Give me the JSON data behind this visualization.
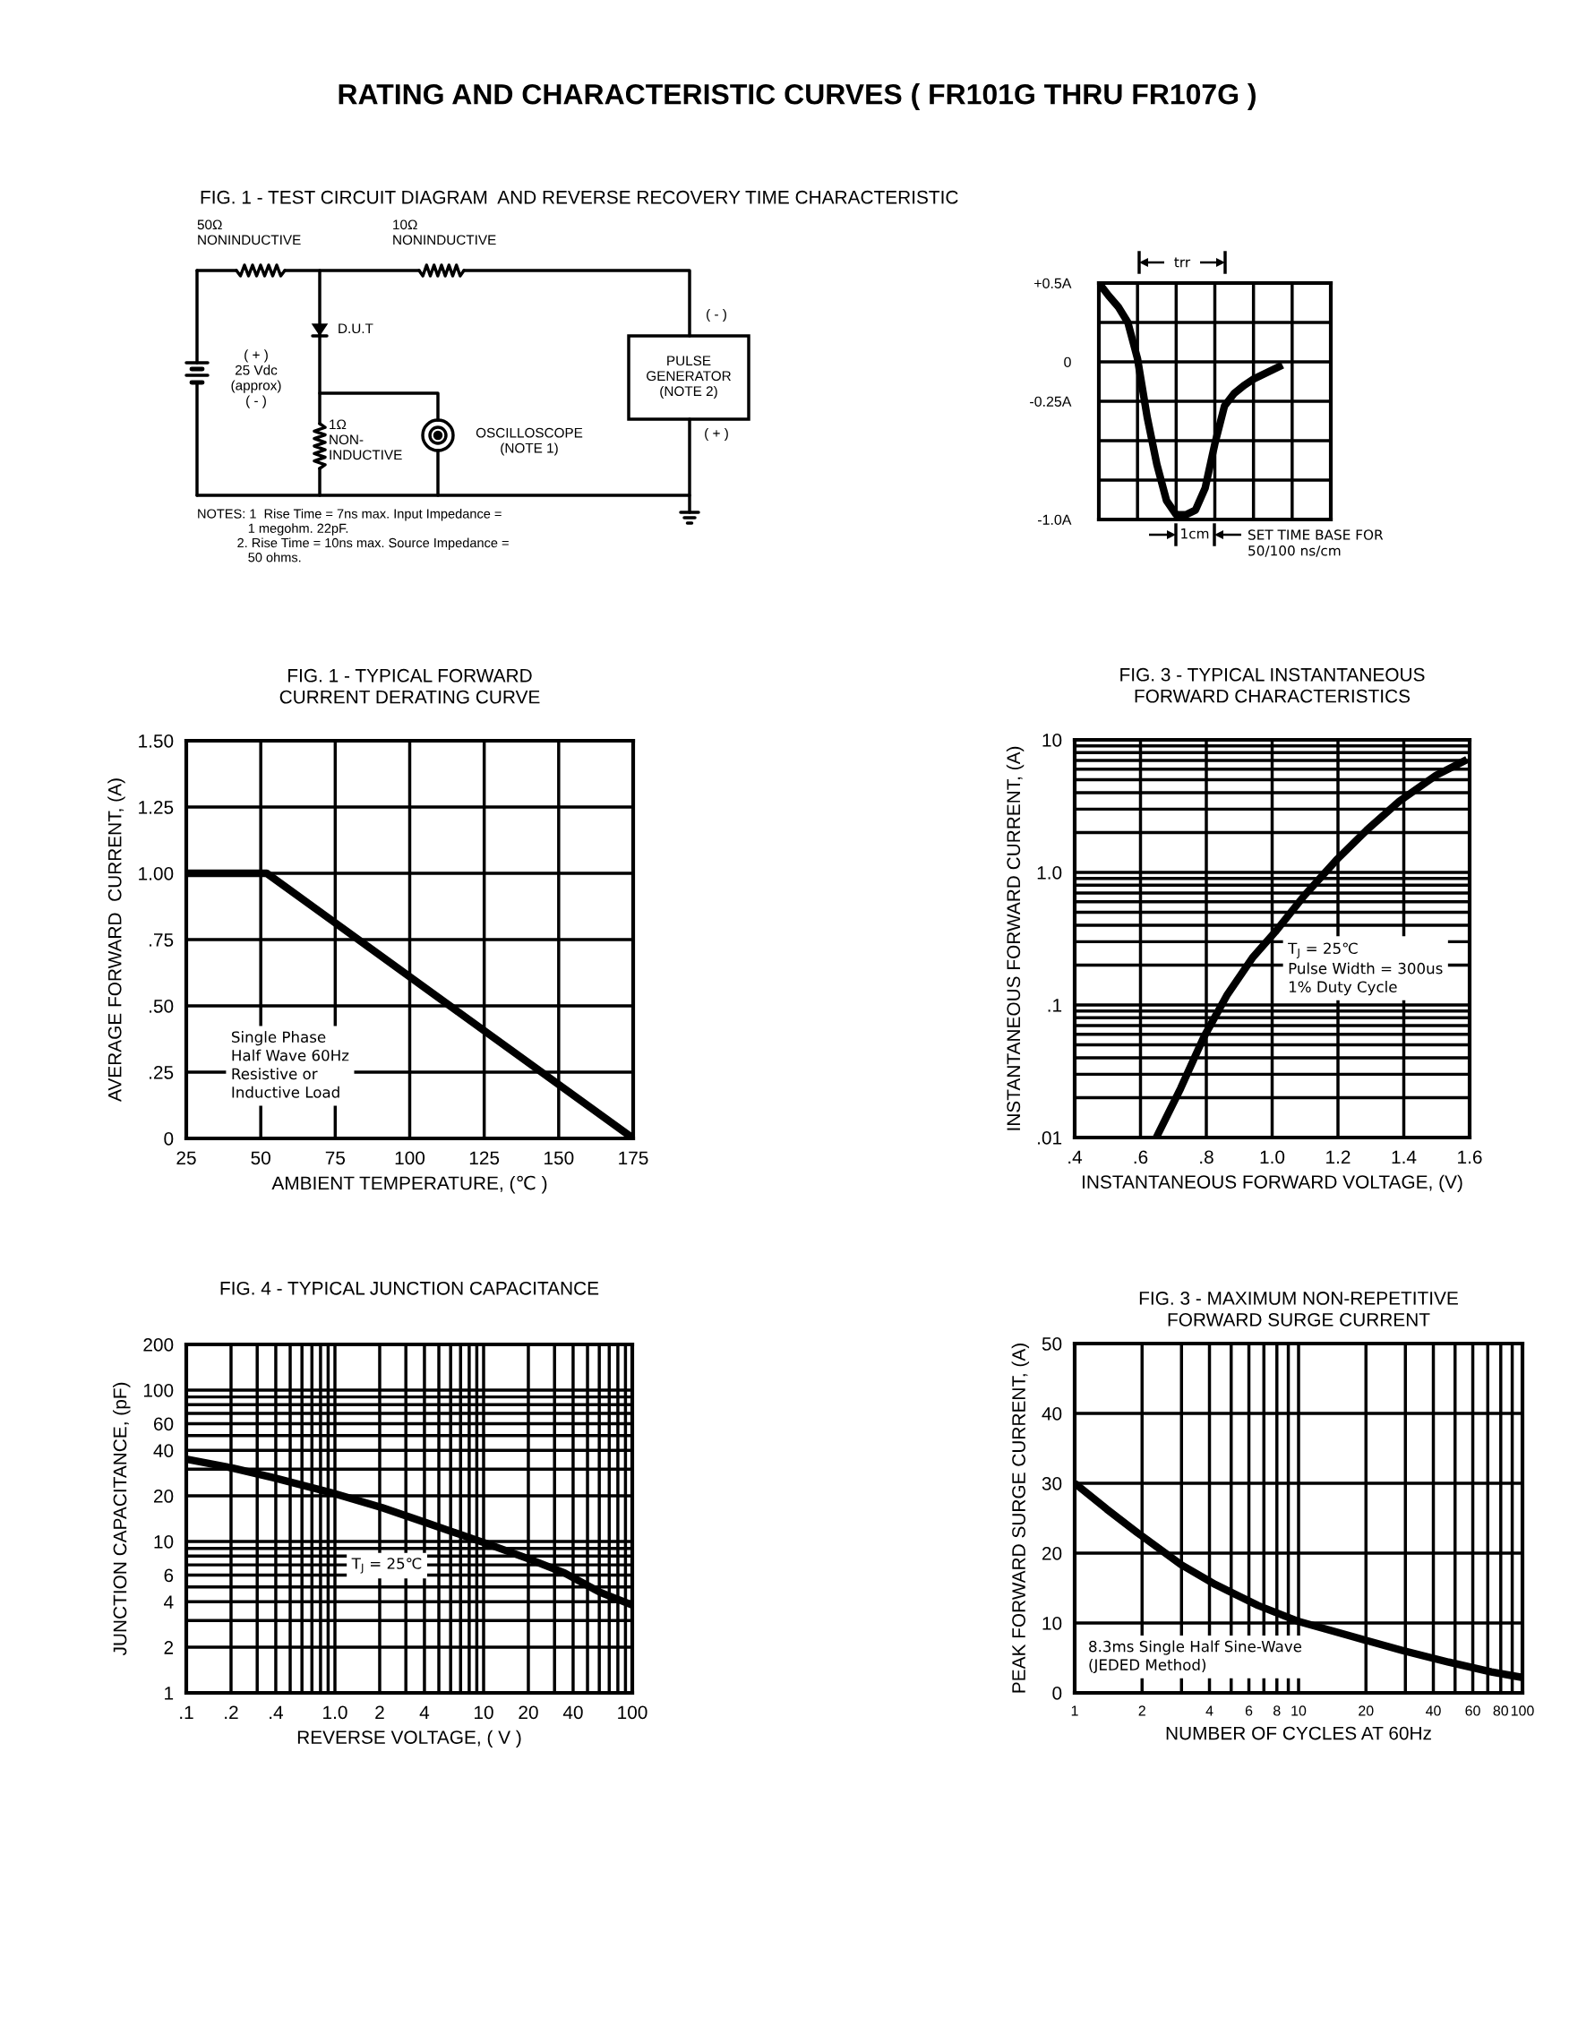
{
  "chart_data": [
    {
      "type": "other",
      "title": "RATING AND CHARACTERISTIC CURVES ( FR101G THRU FR107G )",
      "subtitle": "FIG. 1 - TEST CIRCUIT DIAGRAM  AND REVERSE RECOVERY TIME CHARACTERISTIC",
      "annotations": [
        "50Ω\nNONINDUCTIVE",
        "10Ω\nNONINDUCTIVE",
        "D.U.T",
        "( + )\n25 Vdc\n(approx)\n( - )",
        "1Ω\nNON-\nINDUCTIVE",
        "OSCILLOSCOPE\n(NOTE 1)",
        "( - )",
        "PULSE\nGENERATOR\n(NOTE 2)",
        "( + )",
        "NOTES: 1  Rise Time = 7ns max. Input Impedance =\n              1 megohm. 22pF.\n           2. Rise Time = 10ns max. Source Impedance =\n              50 ohms."
      ]
    },
    {
      "type": "line",
      "categories": [
        null,
        null,
        null,
        null,
        null,
        null,
        null,
        null,
        null,
        null,
        null,
        null,
        null,
        null,
        null,
        null,
        null,
        null,
        null,
        null,
        null,
        null,
        null,
        null,
        null
      ],
      "series": [
        {
          "color": "#000000",
          "values": [
            0.5,
            0.42,
            0.35,
            0.25,
            0.02,
            -0.35,
            -0.65,
            -0.88,
            -0.97,
            -0.97,
            -0.94,
            -0.8,
            -0.52,
            -0.28,
            -0.2,
            -0.15,
            -0.11,
            -0.08,
            -0.05,
            -0.02,
            null,
            null,
            null,
            null,
            null
          ]
        }
      ],
      "ylim": [
        -1.0,
        0.5
      ],
      "yticks": [
        {
          "value": -1.0,
          "label": "-1.0A"
        },
        {
          "value": -0.75,
          "label": null
        },
        {
          "value": -0.5,
          "label": null
        },
        {
          "value": -0.25,
          "label": "-0.25A"
        },
        0,
        {
          "value": 0.25,
          "label": null
        },
        {
          "value": 0.5,
          "label": "+0.5A"
        }
      ],
      "grid": true,
      "tick_labels": "y",
      "annotations": [
        "trr",
        "1cm",
        "SET TIME BASE FOR\n50/100 ns/cm"
      ]
    },
    {
      "type": "line",
      "title": "FIG. 1 - TYPICAL FORWARD\nCURRENT DERATING CURVE",
      "xlabel": "AMBIENT TEMPERATURE, (℃ )",
      "ylabel": "AVERAGE FORWARD  CURRENT, (A)",
      "x": [
        25,
        52,
        175
      ],
      "series": [
        {
          "color": "#000000",
          "values": [
            1.0,
            1.0,
            0
          ]
        }
      ],
      "xlim": [
        25,
        175
      ],
      "xticks": [
        25,
        50,
        75,
        100,
        125,
        150,
        175
      ],
      "ylim": [
        0,
        1.5
      ],
      "yticks": [
        0,
        {
          "value": 0.25,
          "label": ".25"
        },
        {
          "value": 0.5,
          "label": ".50"
        },
        {
          "value": 0.75,
          "label": ".75"
        },
        {
          "value": 1.0,
          "label": "1.00"
        },
        {
          "value": 1.25,
          "label": "1.25"
        },
        {
          "value": 1.5,
          "label": "1.50"
        }
      ],
      "grid": true,
      "annotations": [
        "Single Phase\nHalf Wave 60Hz\nResistive or\nInductive Load"
      ]
    },
    {
      "type": "line",
      "title": "FIG. 3 - TYPICAL INSTANTANEOUS\nFORWARD CHARACTERISTICS",
      "xlabel": "INSTANTANEOUS FORWARD VOLTAGE, (V)",
      "ylabel": "INSTANTANEOUS FORWARD CURRENT, (A)",
      "x": [
        0.648,
        0.722,
        0.792,
        0.864,
        0.942,
        1.009,
        1.098,
        1.198,
        1.287,
        1.387,
        1.498,
        1.592
      ],
      "series": [
        {
          "color": "#000000",
          "values": [
            0.01,
            0.0235,
            0.057,
            0.12,
            0.23,
            0.355,
            0.67,
            1.26,
            2.08,
            3.45,
            5.4,
            7.1
          ]
        }
      ],
      "log": "y",
      "xlim": [
        0.4,
        1.6
      ],
      "xticks": [
        {
          "value": 0.4,
          "label": ".4"
        },
        {
          "value": 0.6,
          "label": ".6"
        },
        {
          "value": 0.8,
          "label": ".8"
        },
        {
          "value": 1.0,
          "label": "1.0"
        },
        1.2,
        1.4,
        1.6
      ],
      "ylim": [
        0.01,
        10
      ],
      "yticks": [
        {
          "value": 0.01,
          "label": ".01"
        },
        {
          "value": 0.1,
          "label": ".1"
        },
        {
          "value": 1,
          "label": "1.0"
        },
        10
      ],
      "grid": true,
      "annotations": [
        "T$_{J}$ = 25℃\nPulse Width = 300us\n1% Duty Cycle"
      ]
    },
    {
      "type": "line",
      "title": "FIG. 4 - TYPICAL JUNCTION CAPACITANCE",
      "xlabel": "REVERSE VOLTAGE, ( V )",
      "ylabel": "JUNCTION CAPACITANCE, (pF)",
      "x": [
        0.1,
        0.206,
        0.383,
        0.945,
        2.08,
        4.1,
        10.4,
        19.9,
        35,
        61,
        100
      ],
      "series": [
        {
          "color": "#000000",
          "values": [
            35,
            30.5,
            26.4,
            21,
            16.7,
            13.3,
            9.7,
            7.7,
            6.2,
            4.6,
            3.8
          ]
        }
      ],
      "log": "xy",
      "xlim": [
        0.1,
        100
      ],
      "xticks": [
        {
          "value": 0.1,
          "label": ".1"
        },
        {
          "value": 0.2,
          "label": ".2"
        },
        {
          "value": 0.4,
          "label": ".4"
        },
        {
          "value": 1,
          "label": "1.0"
        },
        2,
        4,
        10,
        20,
        40,
        100
      ],
      "ylim": [
        1,
        200
      ],
      "yticks": [
        1,
        2,
        4,
        6,
        10,
        20,
        40,
        60,
        100,
        200
      ],
      "grid": true,
      "annotations": [
        "T$_{J}$ = 25℃"
      ]
    },
    {
      "type": "line",
      "title": "FIG. 3 - MAXIMUM NON-REPETITIVE\nFORWARD SURGE CURRENT",
      "xlabel": "NUMBER OF CYCLES AT 60Hz",
      "ylabel": "PEAK FORWARD SURGE CURRENT, (A)",
      "x": [
        1,
        1.39,
        1.91,
        2.97,
        4.25,
        6.6,
        9.84,
        17.2,
        28.9,
        46.8,
        72.6,
        100
      ],
      "series": [
        {
          "color": "#000000",
          "values": [
            30,
            26.3,
            22.9,
            18.4,
            15.5,
            12.5,
            10.3,
            8.1,
            6.1,
            4.4,
            3.0,
            2.2
          ]
        }
      ],
      "log": "x",
      "xlim": [
        1,
        100
      ],
      "xticks": [
        1,
        2,
        4,
        6,
        8,
        10,
        20,
        40,
        60,
        80,
        100
      ],
      "ylim": [
        0,
        50
      ],
      "yticks": [
        0,
        10,
        20,
        30,
        40,
        50
      ],
      "grid": true,
      "annotations": [
        "8.3ms Single Half Sine-Wave\n(JEDED Method)"
      ]
    }
  ]
}
